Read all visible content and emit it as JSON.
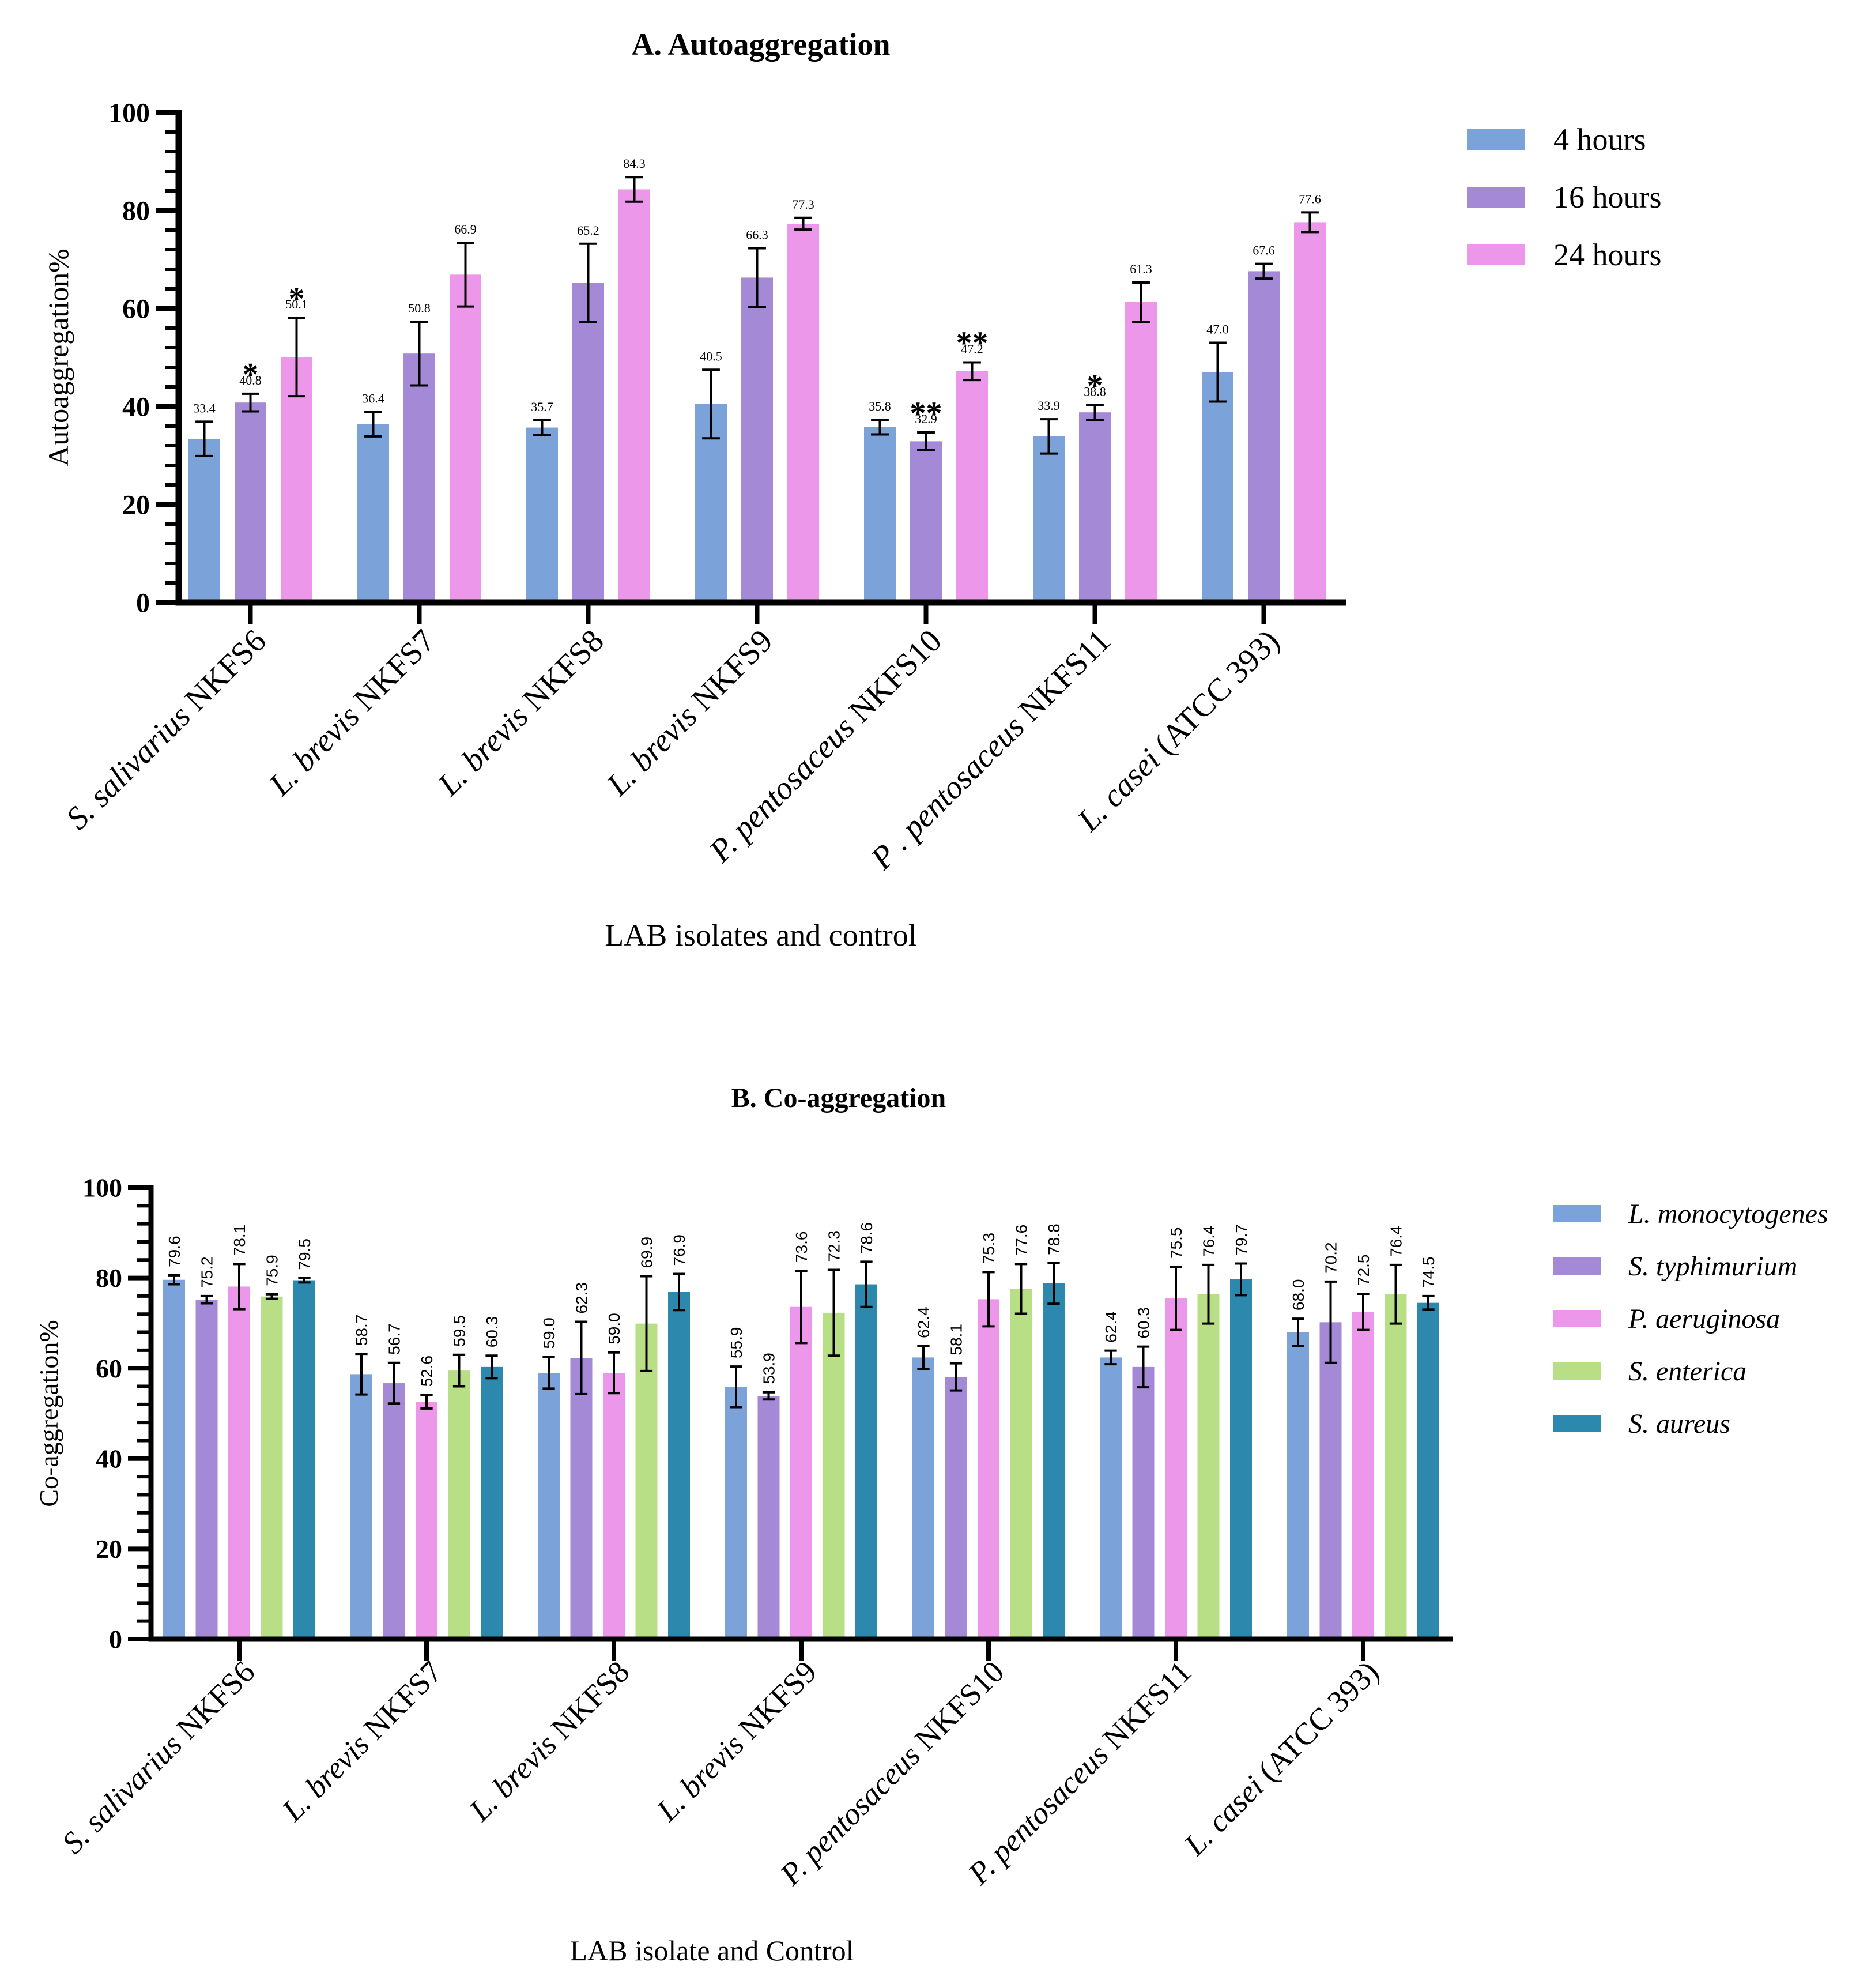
{
  "chart_data": [
    {
      "type": "bar",
      "title": "A. Autoaggregation",
      "xlabel": "LAB  isolates and control",
      "ylabel": "Autoaggregation%",
      "ylim": [
        0,
        100
      ],
      "yticks": [
        "0",
        "20",
        "40",
        "60",
        "80",
        "100"
      ],
      "categories": [
        {
          "italic": "S. salivarius",
          "rest": " NKFS6"
        },
        {
          "italic": "L. brevis",
          "rest": " NKFS7"
        },
        {
          "italic": "L. brevis",
          "rest": " NKFS8"
        },
        {
          "italic": "L. brevis",
          "rest": " NKFS9"
        },
        {
          "italic": "P. pentosaceus",
          "rest": " NKFS10"
        },
        {
          "italic": "P . pentosaceus",
          "rest": " NKFS11"
        },
        {
          "italic": "L. casei",
          "rest": " (ATCC 393)"
        }
      ],
      "legend": {
        "position": "top-right",
        "italic": false
      },
      "series": [
        {
          "name": "4 hours",
          "color": "#7ba3d9",
          "values": [
            33.4,
            36.4,
            35.7,
            40.5,
            35.8,
            33.9,
            47.0
          ],
          "labels": [
            "33.4",
            "36.4",
            "35.7",
            "40.5",
            "35.8",
            "33.9",
            "47.0"
          ],
          "errors": [
            3.5,
            2.5,
            1.5,
            7.0,
            1.5,
            3.5,
            6.0
          ],
          "marks": [
            "",
            "",
            "",
            "",
            "",
            "",
            ""
          ]
        },
        {
          "name": "16 hours",
          "color": "#a48ad6",
          "values": [
            40.8,
            50.8,
            65.2,
            66.3,
            32.9,
            38.8,
            67.6
          ],
          "labels": [
            "40.8",
            "50.8",
            "65.2",
            "66.3",
            "32.9",
            "38.8",
            "67.6"
          ],
          "errors": [
            1.8,
            6.5,
            8.0,
            6.0,
            1.8,
            1.5,
            1.5
          ],
          "marks": [
            "*",
            "",
            "",
            "",
            "**",
            "*",
            ""
          ]
        },
        {
          "name": "24 hours",
          "color": "#ec97e9",
          "values": [
            50.1,
            66.9,
            84.3,
            77.3,
            47.2,
            61.3,
            77.6
          ],
          "labels": [
            "50.1",
            "66.9",
            "84.3",
            "77.3",
            "47.2",
            "61.3",
            "77.6"
          ],
          "errors": [
            8.0,
            6.5,
            2.5,
            1.2,
            1.8,
            4.0,
            2.0
          ],
          "marks": [
            "*",
            "",
            "",
            "",
            "**",
            "",
            ""
          ]
        }
      ]
    },
    {
      "type": "bar",
      "title": "B. Co-aggregation",
      "xlabel": "LAB isolate and Control",
      "ylabel": "Co-aggregation%",
      "ylim": [
        0,
        100
      ],
      "yticks": [
        "0",
        "20",
        "40",
        "60",
        "80",
        "100"
      ],
      "categories": [
        {
          "italic": "S. salivarius",
          "rest": " NKFS6"
        },
        {
          "italic": "L. brevis",
          "rest": " NKFS7"
        },
        {
          "italic": "L. brevis",
          "rest": " NKFS8"
        },
        {
          "italic": "L. brevis",
          "rest": " NKFS9"
        },
        {
          "italic": "P. pentosaceus",
          "rest": " NKFS10"
        },
        {
          "italic": "P. pentosaceus",
          "rest": " NKFS11"
        },
        {
          "italic": "L. casei",
          "rest": " (ATCC 393)"
        }
      ],
      "legend": {
        "position": "top-right",
        "italic": true
      },
      "series": [
        {
          "name": "L. monocytogenes",
          "color": "#7ba3d9",
          "values": [
            79.6,
            58.7,
            59.0,
            55.9,
            62.4,
            62.4,
            68.0
          ],
          "labels": [
            "79.6",
            "58.7",
            "59.0",
            "55.9",
            "62.4",
            "62.4",
            "68.0"
          ],
          "errors": [
            1.0,
            4.5,
            3.5,
            4.5,
            2.5,
            1.5,
            3.0
          ]
        },
        {
          "name": "S. typhimurium",
          "color": "#a48ad6",
          "values": [
            75.2,
            56.7,
            62.3,
            53.9,
            58.1,
            60.3,
            70.2
          ],
          "labels": [
            "75.2",
            "56.7",
            "62.3",
            "53.9",
            "58.1",
            "60.3",
            "70.2"
          ],
          "errors": [
            0.8,
            4.5,
            8.0,
            0.8,
            3.0,
            4.5,
            9.0
          ]
        },
        {
          "name": "P. aeruginosa",
          "color": "#ec97e9",
          "values": [
            78.1,
            52.6,
            59.0,
            73.6,
            75.3,
            75.5,
            72.5
          ],
          "labels": [
            "78.1",
            "52.6",
            "59.0",
            "73.6",
            "75.3",
            "75.5",
            "72.5"
          ],
          "errors": [
            5.0,
            1.5,
            4.5,
            8.0,
            6.0,
            7.0,
            4.0
          ]
        },
        {
          "name": "S. enterica",
          "color": "#b8df85",
          "values": [
            75.9,
            59.5,
            69.9,
            72.3,
            77.6,
            76.4,
            76.4
          ],
          "labels": [
            "75.9",
            "59.5",
            "69.9",
            "72.3",
            "77.6",
            "76.4",
            "76.4"
          ],
          "errors": [
            0.5,
            3.5,
            10.5,
            9.5,
            5.5,
            6.5,
            6.5
          ]
        },
        {
          "name": "S. aureus",
          "color": "#2c88ad",
          "values": [
            79.5,
            60.3,
            76.9,
            78.6,
            78.8,
            79.7,
            74.5
          ],
          "labels": [
            "79.5",
            "60.3",
            "76.9",
            "78.6",
            "78.8",
            "79.7",
            "74.5"
          ],
          "errors": [
            0.5,
            2.5,
            4.0,
            5.0,
            4.5,
            3.5,
            1.5
          ]
        }
      ]
    }
  ]
}
